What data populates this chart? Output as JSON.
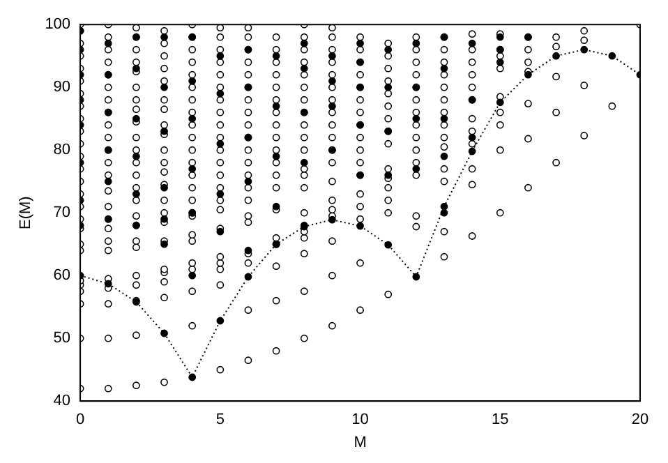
{
  "chart_data": {
    "type": "scatter",
    "xlabel": "M",
    "ylabel": "E(M)",
    "xlim": [
      0,
      20
    ],
    "ylim": [
      40,
      100
    ],
    "xticks": [
      0,
      5,
      10,
      15,
      20
    ],
    "yticks": [
      40,
      50,
      60,
      70,
      80,
      90,
      100
    ],
    "grid": false,
    "legend": false,
    "marker": "circle",
    "series": [
      {
        "color": "#ffffff",
        "x": [
          0,
          0,
          0,
          0,
          0,
          0,
          0,
          0,
          0,
          0,
          0,
          0,
          0,
          0,
          0,
          0,
          0,
          0,
          0,
          0,
          0,
          0,
          0,
          0,
          0,
          0,
          1,
          1,
          1,
          1,
          1,
          1,
          1,
          1,
          1,
          1,
          1,
          1,
          1,
          1,
          1,
          1,
          1,
          1,
          1,
          1,
          1,
          1,
          1,
          1,
          2,
          2,
          2,
          2,
          2,
          2,
          2,
          2,
          2,
          2,
          2,
          2,
          2,
          2,
          2,
          2,
          2,
          2,
          2,
          2,
          2,
          2,
          2,
          2,
          3,
          3,
          3,
          3,
          3,
          3,
          3,
          3,
          3,
          3,
          3,
          3,
          3,
          3,
          3,
          3,
          3,
          3,
          3,
          3,
          3,
          3,
          4,
          4,
          4,
          4,
          4,
          4,
          4,
          4,
          4,
          4,
          4,
          4,
          4,
          4,
          4,
          4,
          4,
          4,
          4,
          4,
          4,
          4,
          4,
          5,
          5,
          5,
          5,
          5,
          5,
          5,
          5,
          5,
          5,
          5,
          5,
          5,
          5,
          5,
          5,
          5,
          5,
          5,
          5,
          5,
          5,
          6,
          6,
          6,
          6,
          6,
          6,
          6,
          6,
          6,
          6,
          6,
          6,
          6,
          6,
          6,
          6,
          6,
          6,
          6,
          6,
          6,
          7,
          7,
          7,
          7,
          7,
          7,
          7,
          7,
          7,
          7,
          7,
          7,
          7,
          7,
          7,
          7,
          7,
          7,
          7,
          8,
          8,
          8,
          8,
          8,
          8,
          8,
          8,
          8,
          8,
          8,
          8,
          8,
          8,
          8,
          8,
          8,
          8,
          8,
          8,
          9,
          9,
          9,
          9,
          9,
          9,
          9,
          9,
          9,
          9,
          9,
          9,
          9,
          9,
          9,
          9,
          9,
          9,
          9,
          10,
          10,
          10,
          10,
          10,
          10,
          10,
          10,
          10,
          10,
          10,
          10,
          10,
          10,
          10,
          10,
          10,
          11,
          11,
          11,
          11,
          11,
          11,
          11,
          11,
          11,
          11,
          11,
          11,
          11,
          11,
          11,
          12,
          12,
          12,
          12,
          12,
          12,
          12,
          12,
          12,
          12,
          12,
          12,
          12,
          12,
          13,
          13,
          13,
          13,
          13,
          13,
          13,
          13,
          13,
          13,
          13,
          13,
          13,
          13,
          14,
          14,
          14,
          14,
          14,
          14,
          14,
          14,
          14,
          14,
          14,
          14,
          15,
          15,
          15,
          15,
          15,
          15,
          15,
          15,
          15,
          16,
          16,
          16,
          16,
          16,
          16,
          16,
          17,
          17,
          17,
          17,
          17,
          18,
          18,
          18,
          18,
          19,
          20
        ],
        "values": [
          42,
          50,
          55.5,
          57.5,
          58.5,
          59.2,
          64,
          65,
          67.5,
          69,
          71,
          73,
          75,
          77,
          79,
          81,
          83,
          85,
          87,
          89,
          91,
          93,
          95,
          97,
          99,
          100,
          42,
          50,
          55.5,
          58,
          59.5,
          64,
          65.5,
          67.5,
          69,
          71,
          73.5,
          76,
          78,
          80,
          82,
          84,
          86,
          88,
          90,
          92,
          94,
          96,
          98,
          100,
          42.5,
          50.5,
          56,
          58.5,
          60,
          64.5,
          65.5,
          68,
          69.5,
          72,
          74,
          76,
          78,
          80,
          82,
          84.5,
          86.5,
          88,
          90,
          92.5,
          94,
          96,
          98,
          99.5,
          43,
          56.5,
          59,
          60.5,
          61,
          65.5,
          68.5,
          70,
          72,
          74.5,
          76.5,
          78,
          80,
          82.5,
          84,
          86.5,
          88,
          91,
          93,
          95,
          97,
          99,
          52,
          57.5,
          61,
          62,
          65.5,
          66.5,
          69.5,
          70,
          72,
          74,
          76,
          78,
          80,
          82,
          84,
          86,
          88,
          90,
          92,
          94,
          96,
          98,
          100,
          45,
          58.5,
          61,
          62,
          63,
          67.5,
          70.5,
          72,
          74,
          76,
          78,
          80,
          82,
          84,
          86,
          88,
          90,
          92,
          94,
          96,
          98,
          99.5,
          46.5,
          54.5,
          62,
          63.5,
          68.5,
          69.5,
          72,
          74,
          76,
          78,
          80,
          82,
          84,
          86,
          88,
          90,
          92,
          94,
          96,
          98,
          99.5,
          48,
          56,
          61.5,
          65,
          66,
          70.5,
          74,
          76,
          78,
          80,
          82,
          84,
          86,
          88,
          90,
          92,
          94,
          96,
          98,
          50,
          57.5,
          63.5,
          66,
          67,
          70,
          74,
          76,
          77,
          80,
          82,
          84,
          86,
          88,
          90,
          92,
          94,
          96,
          98,
          100,
          52,
          60,
          65.5,
          69.5,
          70.5,
          72,
          75,
          78,
          80,
          82,
          84,
          86,
          88,
          90,
          92,
          94,
          96,
          98,
          99.5,
          54.5,
          62,
          69,
          71,
          73,
          76,
          78,
          80,
          82,
          84,
          86,
          88,
          90,
          92,
          94,
          96,
          98,
          57,
          70,
          72,
          74,
          75.5,
          77,
          81,
          83,
          85,
          87,
          89,
          91,
          93,
          95,
          97,
          67.8,
          69.5,
          76,
          78,
          80,
          82,
          84,
          86,
          88,
          90,
          92,
          94,
          96,
          98,
          63,
          67,
          75,
          77,
          80.5,
          82,
          84,
          86,
          88,
          90,
          92,
          94,
          96,
          98,
          66.3,
          74.5,
          77,
          81,
          83,
          85,
          88,
          90,
          92,
          94,
          96,
          98.5,
          70,
          80,
          84,
          86,
          88.5,
          93,
          95,
          96,
          98.5,
          74,
          81.8,
          87.4,
          92.5,
          94,
          96,
          98,
          78,
          86,
          91.7,
          96.5,
          98,
          82.3,
          90.3,
          97.5,
          99,
          87,
          100
        ]
      },
      {
        "color": "#000000",
        "x": [
          0,
          0,
          0,
          0,
          0,
          0,
          0,
          0,
          1,
          1,
          1,
          1,
          1,
          1,
          2,
          2,
          2,
          2,
          2,
          2,
          3,
          3,
          3,
          3,
          3,
          3,
          4,
          4,
          4,
          4,
          4,
          4,
          5,
          5,
          5,
          5,
          5,
          6,
          6,
          6,
          6,
          6,
          7,
          7,
          7,
          7,
          7,
          8,
          8,
          8,
          8,
          8,
          9,
          9,
          9,
          9,
          10,
          10,
          10,
          10,
          10,
          11,
          11,
          11,
          11,
          12,
          12,
          12,
          12,
          13,
          13,
          13,
          13,
          13,
          14,
          14,
          14,
          15,
          15,
          15,
          16
        ],
        "values": [
          68,
          72,
          78,
          84,
          88,
          92,
          96,
          99,
          69,
          75,
          80,
          86,
          92,
          97,
          68,
          73,
          79,
          85,
          93,
          98,
          65,
          69,
          74,
          83,
          90,
          98,
          60,
          70,
          77,
          85,
          91,
          98,
          67,
          73,
          81,
          89,
          95,
          64,
          75,
          82,
          90,
          96,
          65,
          71,
          79,
          87,
          95,
          68,
          78,
          86,
          93,
          97,
          80,
          87,
          91,
          95,
          76,
          84,
          90,
          94,
          97,
          76,
          83,
          90,
          96,
          77,
          85,
          90,
          97,
          70,
          79,
          85,
          93,
          98,
          82,
          88,
          97,
          94,
          96,
          98,
          98
        ]
      },
      {
        "type": "line",
        "color": "#000000",
        "line_style": "dotted",
        "x": [
          0,
          1,
          2,
          3,
          4,
          5,
          6,
          7,
          8,
          9,
          10,
          11,
          12,
          13,
          14,
          15,
          16,
          17,
          18,
          19,
          20
        ],
        "values": [
          60,
          58.7,
          55.8,
          50.8,
          43.8,
          52.8,
          59.8,
          65,
          67.8,
          68.9,
          67.9,
          64.9,
          59.8,
          71,
          79.8,
          87.6,
          92,
          95,
          96,
          95,
          92
        ]
      }
    ]
  }
}
